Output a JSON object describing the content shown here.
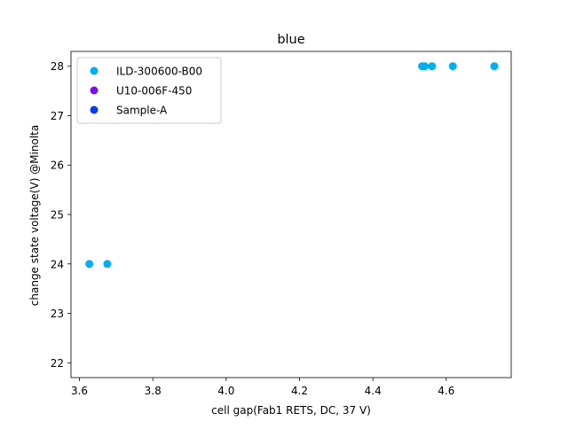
{
  "chart_data": {
    "type": "scatter",
    "title": "blue",
    "xlabel": "cell gap(Fab1 RETS, DC, 37 V)",
    "ylabel": "change state voltage(V) @Minolta",
    "xlim": [
      3.577,
      4.777
    ],
    "ylim": [
      21.7,
      28.3
    ],
    "xticks": [
      3.6,
      3.8,
      4.0,
      4.2,
      4.4,
      4.6
    ],
    "yticks": [
      22,
      23,
      24,
      25,
      26,
      27,
      28
    ],
    "grid": false,
    "legend_position": "top-left",
    "series": [
      {
        "name": "ILD-300600-B00",
        "color": "#00b0f0",
        "points": [
          {
            "x": 3.627,
            "y": 24
          },
          {
            "x": 3.676,
            "y": 24
          },
          {
            "x": 4.534,
            "y": 28
          },
          {
            "x": 4.541,
            "y": 28
          },
          {
            "x": 4.561,
            "y": 28
          },
          {
            "x": 4.618,
            "y": 28
          },
          {
            "x": 4.731,
            "y": 28
          }
        ]
      },
      {
        "name": "U10-006F-450",
        "color": "#7a10e8",
        "points": []
      },
      {
        "name": "Sample-A",
        "color": "#0a3cf2",
        "points": []
      }
    ]
  }
}
